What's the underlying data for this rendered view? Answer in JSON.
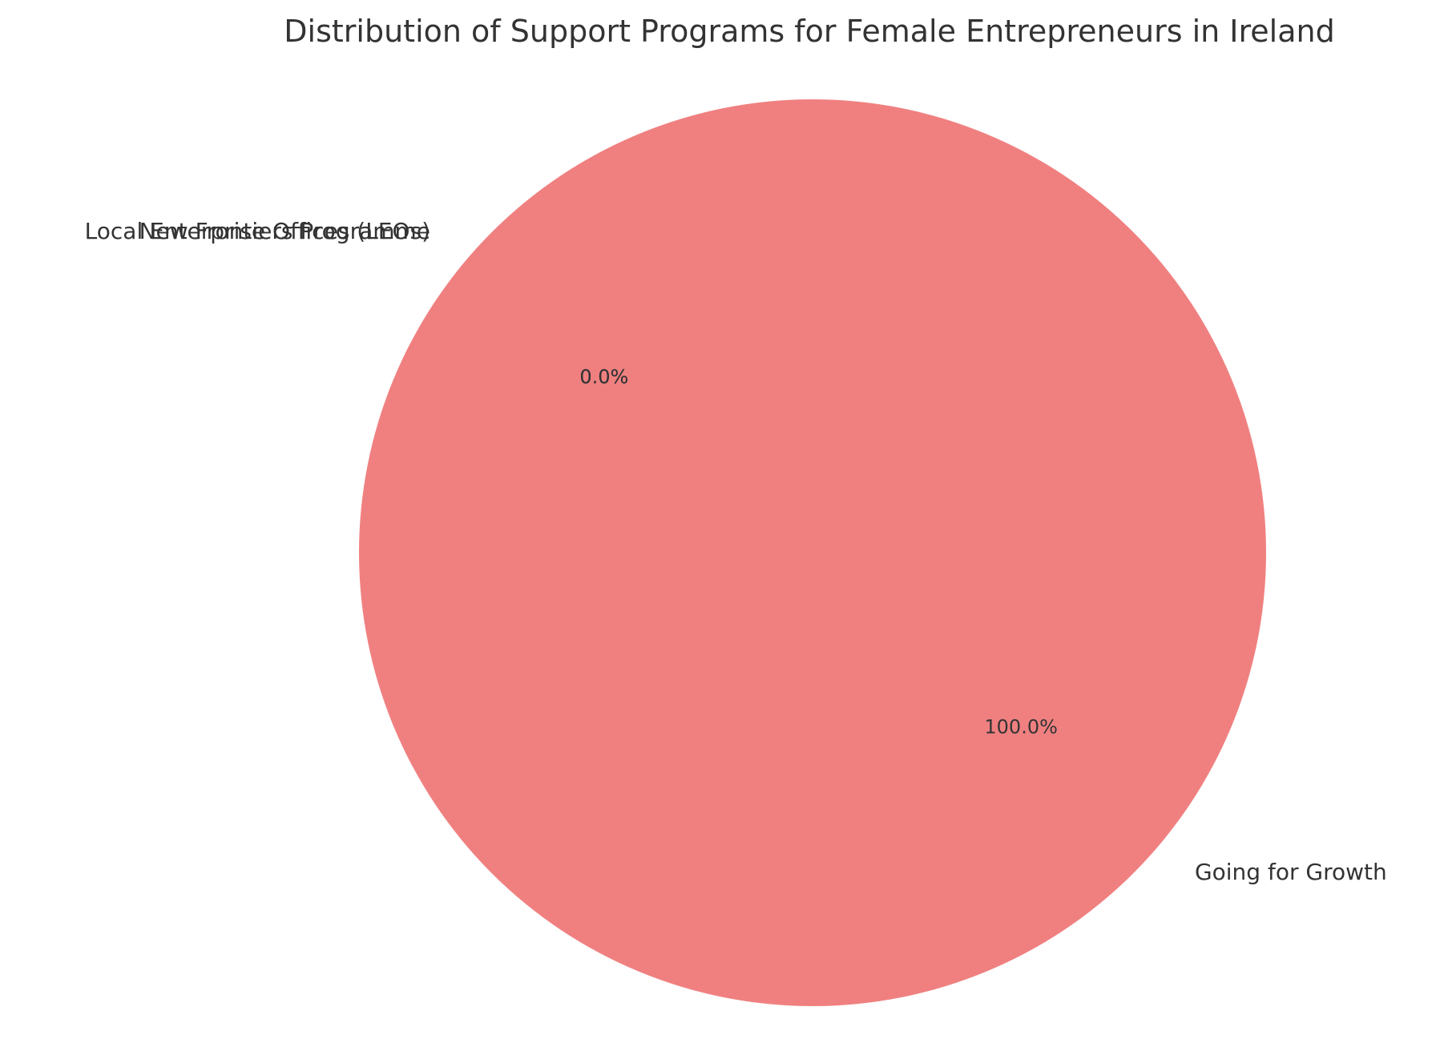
{
  "chart_data": {
    "type": "pie",
    "title": "Distribution of Support Programs for Female Entrepreneurs in Ireland",
    "slices": [
      {
        "label": "Local Enterprise Offices (LEOs)",
        "value": 0.0,
        "pct_label": "0.0%",
        "color": "#f08080"
      },
      {
        "label": "New Frontiers Programme",
        "value": 0.0,
        "pct_label": "0.0%",
        "color": "#87cefa"
      },
      {
        "label": "Going for Growth",
        "value": 100.0,
        "pct_label": "100.0%",
        "color": "#f08080"
      }
    ],
    "start_angle_deg": 140,
    "direction": "counterclockwise"
  }
}
